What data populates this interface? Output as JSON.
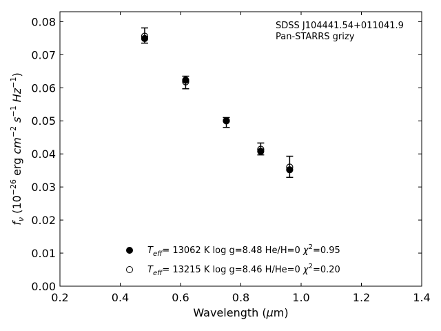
{
  "chart_data": {
    "type": "scatter",
    "title": "",
    "annotations": [
      "SDSS J104441.54+011041.9",
      "Pan-STARRS grizy"
    ],
    "xlabel": {
      "main": "Wavelength (",
      "greek": "μ",
      "unit": "m)"
    },
    "ylabel": {
      "f": "f",
      "sub": "ν",
      "a": " (10",
      "exp1": "−26",
      "b": " erg ",
      "c1": "cm",
      "exp2": "−2",
      "c2": " s",
      "exp3": "−1",
      "c3": " Hz",
      "exp4": "−1",
      "d": ")"
    },
    "xlim": [
      0.2,
      1.4
    ],
    "ylim": [
      0.0,
      0.083
    ],
    "x_ticks": [
      "0.2",
      "0.4",
      "0.6",
      "0.8",
      "1.0",
      "1.2",
      "1.4"
    ],
    "y_ticks": [
      "0.00",
      "0.01",
      "0.02",
      "0.03",
      "0.04",
      "0.05",
      "0.06",
      "0.07",
      "0.08"
    ],
    "grid": false,
    "legend_position": "lower-center",
    "observed": {
      "x": [
        0.481,
        0.617,
        0.752,
        0.866,
        0.962
      ],
      "y": [
        0.0758,
        0.0616,
        0.0495,
        0.0415,
        0.0361
      ],
      "err": [
        0.0023,
        0.0019,
        0.0015,
        0.0018,
        0.0032
      ]
    },
    "series": [
      {
        "legend": {
          "T": "T",
          "sub": "eff",
          "rest": "= 13062 K  log g=8.48  He/H=0  ",
          "chi": "χ",
          "sup": "2",
          "end": "=0.95"
        },
        "marker": "filled-circle",
        "color": "#000000",
        "x": [
          0.481,
          0.617,
          0.752,
          0.866,
          0.962
        ],
        "y": [
          0.0749,
          0.0623,
          0.05,
          0.0408,
          0.0352
        ]
      },
      {
        "legend": {
          "T": "T",
          "sub": "eff",
          "rest": "= 13215 K  log g=8.46  H/He=0  ",
          "chi": "χ",
          "sup": "2",
          "end": "=0.20"
        },
        "marker": "open-circle",
        "color": "#000000",
        "x": [
          0.481,
          0.617,
          0.752,
          0.866,
          0.962
        ],
        "y": [
          0.0756,
          0.0618,
          0.05,
          0.0414,
          0.036
        ]
      }
    ]
  }
}
